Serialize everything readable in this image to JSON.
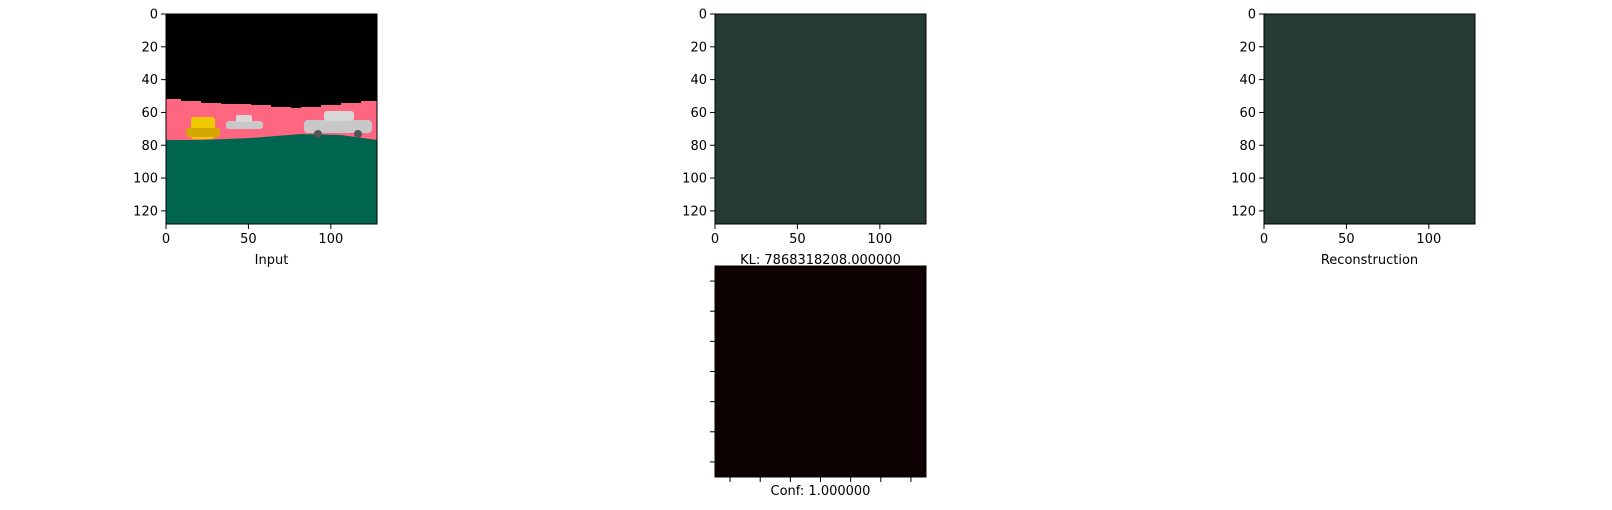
{
  "chart_data": [
    {
      "type": "image",
      "xlabel": "Input",
      "xlim": [
        0,
        128
      ],
      "ylim": [
        128,
        0
      ],
      "xticks": [
        0,
        50,
        100
      ],
      "yticks": [
        0,
        20,
        40,
        60,
        80,
        100,
        120
      ],
      "image_regions": {
        "sky_color": "#000000",
        "wall_color": "#ff6680",
        "floor_color": "#006650",
        "object_colors": [
          "#f0c800",
          "#c8c8c8"
        ]
      }
    },
    {
      "type": "image",
      "xlabel": "KL: 7868318208.000000",
      "xlim": [
        0,
        128
      ],
      "ylim": [
        128,
        0
      ],
      "xticks": [
        0,
        50,
        100
      ],
      "yticks": [
        0,
        20,
        40,
        60,
        80,
        100,
        120
      ],
      "fill_color": "#263c32"
    },
    {
      "type": "image",
      "xlabel": "Reconstruction",
      "xlim": [
        0,
        128
      ],
      "ylim": [
        128,
        0
      ],
      "xticks": [
        0,
        50,
        100
      ],
      "yticks": [
        0,
        20,
        40,
        60,
        80,
        100,
        120
      ],
      "fill_color": "#263c32"
    },
    {
      "type": "image",
      "xlabel": "Conf: 1.000000",
      "fill_color": "#0c0000",
      "unlabeled_ticks": true
    }
  ]
}
